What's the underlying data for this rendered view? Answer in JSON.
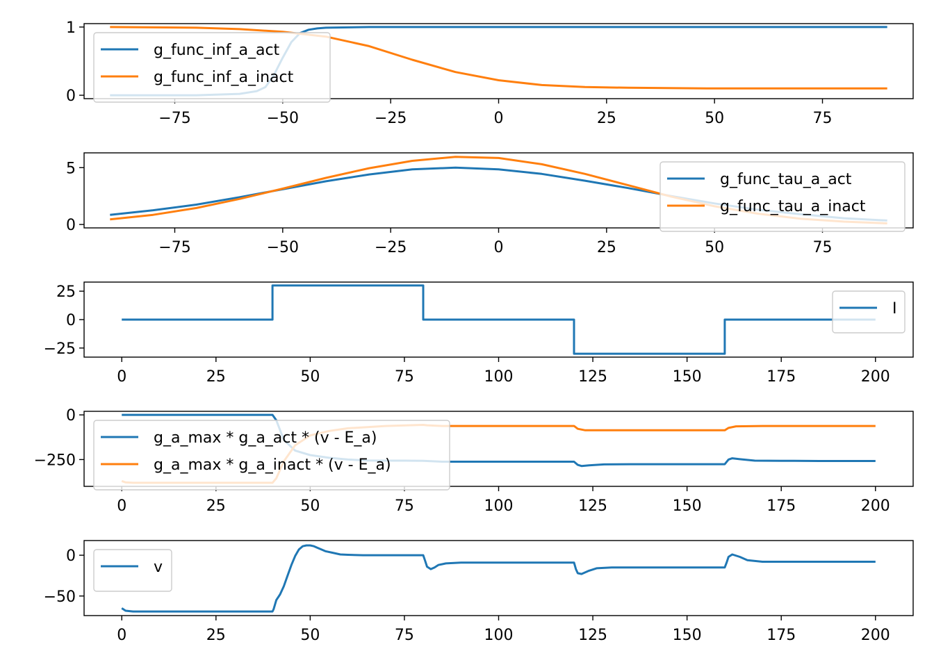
{
  "colors": {
    "series_1": "#1f77b4",
    "series_2": "#ff7f0e"
  },
  "chart_data": [
    {
      "type": "line",
      "xlim": [
        -96,
        96
      ],
      "ylim": [
        -0.05,
        1.05
      ],
      "xticks": [
        -75,
        -50,
        -25,
        0,
        25,
        50,
        75
      ],
      "xtick_labels": [
        "−75",
        "−50",
        "−25",
        "0",
        "25",
        "50",
        "75"
      ],
      "yticks": [
        0,
        1
      ],
      "ytick_labels": [
        "0",
        "1"
      ],
      "legend_position": "upper-left",
      "series": [
        {
          "name": "g_func_inf_a_act",
          "color": "#1f77b4",
          "x": [
            -90,
            -70,
            -60,
            -56,
            -54,
            -52,
            -50,
            -48,
            -46,
            -44,
            -42,
            -40,
            -30,
            0,
            90
          ],
          "y": [
            0,
            0,
            0.02,
            0.06,
            0.12,
            0.3,
            0.55,
            0.78,
            0.91,
            0.96,
            0.98,
            0.99,
            1,
            1,
            1
          ]
        },
        {
          "name": "g_func_inf_a_inact",
          "color": "#ff7f0e",
          "x": [
            -90,
            -70,
            -60,
            -50,
            -40,
            -30,
            -20,
            -10,
            0,
            10,
            20,
            30,
            50,
            90
          ],
          "y": [
            1,
            0.99,
            0.97,
            0.93,
            0.86,
            0.72,
            0.52,
            0.34,
            0.22,
            0.15,
            0.12,
            0.11,
            0.1,
            0.1
          ]
        }
      ]
    },
    {
      "type": "line",
      "xlim": [
        -96,
        96
      ],
      "ylim": [
        -0.3,
        6.3
      ],
      "xticks": [
        -75,
        -50,
        -25,
        0,
        25,
        50,
        75
      ],
      "xtick_labels": [
        "−75",
        "−50",
        "−25",
        "0",
        "25",
        "50",
        "75"
      ],
      "yticks": [
        0,
        5
      ],
      "ytick_labels": [
        "0",
        "5"
      ],
      "legend_position": "upper-right",
      "series": [
        {
          "name": "g_func_tau_a_act",
          "color": "#1f77b4",
          "x": [
            -90,
            -80,
            -70,
            -60,
            -50,
            -40,
            -30,
            -20,
            -10,
            0,
            10,
            20,
            30,
            40,
            50,
            60,
            70,
            80,
            90
          ],
          "y": [
            0.85,
            1.25,
            1.75,
            2.4,
            3.1,
            3.8,
            4.4,
            4.85,
            5,
            4.85,
            4.45,
            3.85,
            3.2,
            2.5,
            1.85,
            1.3,
            0.9,
            0.55,
            0.35
          ]
        },
        {
          "name": "g_func_tau_a_inact",
          "color": "#ff7f0e",
          "x": [
            -90,
            -80,
            -70,
            -60,
            -50,
            -40,
            -30,
            -20,
            -10,
            0,
            10,
            20,
            30,
            40,
            50,
            60,
            70,
            80,
            90
          ],
          "y": [
            0.45,
            0.85,
            1.45,
            2.25,
            3.15,
            4.1,
            4.95,
            5.6,
            5.95,
            5.85,
            5.3,
            4.45,
            3.45,
            2.45,
            1.6,
            0.95,
            0.5,
            0.25,
            0.1
          ]
        }
      ]
    },
    {
      "type": "line",
      "xlim": [
        -10,
        210
      ],
      "ylim": [
        -33,
        33
      ],
      "xticks": [
        0,
        25,
        50,
        75,
        100,
        125,
        150,
        175,
        200
      ],
      "xtick_labels": [
        "0",
        "25",
        "50",
        "75",
        "100",
        "125",
        "150",
        "175",
        "200"
      ],
      "yticks": [
        -25,
        0,
        25
      ],
      "ytick_labels": [
        "−25",
        "0",
        "25"
      ],
      "legend_position": "upper-right",
      "series": [
        {
          "name": "I",
          "color": "#1f77b4",
          "x": [
            0,
            40,
            40,
            80,
            80,
            120,
            120,
            160,
            160,
            200
          ],
          "y": [
            0,
            0,
            30,
            30,
            0,
            0,
            -30,
            -30,
            0,
            0
          ]
        }
      ]
    },
    {
      "type": "line",
      "xlim": [
        -10,
        210
      ],
      "ylim": [
        -400,
        20
      ],
      "xticks": [
        0,
        25,
        50,
        75,
        100,
        125,
        150,
        175,
        200
      ],
      "xtick_labels": [
        "0",
        "25",
        "50",
        "75",
        "100",
        "125",
        "150",
        "175",
        "200"
      ],
      "yticks": [
        -250,
        0
      ],
      "ytick_labels": [
        "−250",
        "0"
      ],
      "legend_position": "upper-left",
      "series": [
        {
          "name": "g_a_max * g_a_act * (v - E_a)",
          "color": "#1f77b4",
          "x": [
            0,
            40,
            41,
            43,
            46,
            50,
            55,
            60,
            65,
            70,
            75,
            80,
            81,
            85,
            90,
            100,
            110,
            120,
            121,
            122,
            124,
            128,
            135,
            150,
            160,
            161,
            162,
            164,
            168,
            175,
            185,
            200
          ],
          "y": [
            0,
            0,
            -30,
            -140,
            -200,
            -225,
            -240,
            -250,
            -255,
            -256,
            -256,
            -257,
            -258,
            -262,
            -262,
            -262,
            -262,
            -262,
            -280,
            -286,
            -282,
            -277,
            -276,
            -276,
            -276,
            -250,
            -243,
            -248,
            -256,
            -257,
            -258,
            -258
          ]
        },
        {
          "name": "g_a_max * g_a_inact * (v - E_a)",
          "color": "#ff7f0e",
          "x": [
            0,
            1,
            3,
            10,
            20,
            30,
            40,
            41,
            43,
            46,
            50,
            55,
            60,
            70,
            80,
            81,
            85,
            90,
            100,
            110,
            120,
            121,
            123,
            130,
            140,
            150,
            160,
            161,
            163,
            170,
            185,
            200
          ],
          "y": [
            -370,
            -378,
            -380,
            -380,
            -380,
            -380,
            -380,
            -355,
            -260,
            -170,
            -115,
            -90,
            -75,
            -62,
            -56,
            -58,
            -62,
            -62,
            -62,
            -62,
            -62,
            -78,
            -86,
            -86,
            -86,
            -86,
            -86,
            -73,
            -64,
            -62,
            -62,
            -62
          ]
        }
      ]
    },
    {
      "type": "line",
      "xlim": [
        -10,
        210
      ],
      "ylim": [
        -74,
        18
      ],
      "xticks": [
        0,
        25,
        50,
        75,
        100,
        125,
        150,
        175,
        200
      ],
      "xtick_labels": [
        "0",
        "25",
        "50",
        "75",
        "100",
        "125",
        "150",
        "175",
        "200"
      ],
      "yticks": [
        -50,
        0
      ],
      "ytick_labels": [
        "−50",
        "0"
      ],
      "legend_position": "upper-left",
      "series": [
        {
          "name": "v",
          "color": "#1f77b4",
          "x": [
            0,
            1,
            3,
            10,
            20,
            30,
            40,
            40.3,
            41,
            42,
            43,
            44,
            45,
            46,
            47,
            48,
            49,
            50,
            51,
            52,
            53,
            54,
            56,
            58,
            60,
            64,
            70,
            80,
            80.5,
            81,
            82,
            83,
            84,
            86,
            90,
            100,
            110,
            120,
            120.5,
            121,
            122,
            124,
            126,
            130,
            140,
            150,
            160,
            160.5,
            161,
            162,
            164,
            166,
            170,
            180,
            190,
            200
          ],
          "y": [
            -65,
            -68,
            -69,
            -69,
            -69,
            -69,
            -69,
            -66,
            -55,
            -48,
            -38,
            -25,
            -12,
            -1,
            7,
            11,
            12,
            12,
            11,
            9,
            7,
            5,
            3,
            1,
            0.5,
            0,
            0,
            0,
            -7,
            -14,
            -17,
            -15,
            -12,
            -10,
            -9,
            -9,
            -9,
            -9,
            -17,
            -22,
            -23,
            -19,
            -16,
            -15,
            -15,
            -15,
            -15,
            -9,
            -2,
            1,
            -2,
            -6,
            -8,
            -8,
            -8,
            -8
          ]
        }
      ]
    }
  ]
}
